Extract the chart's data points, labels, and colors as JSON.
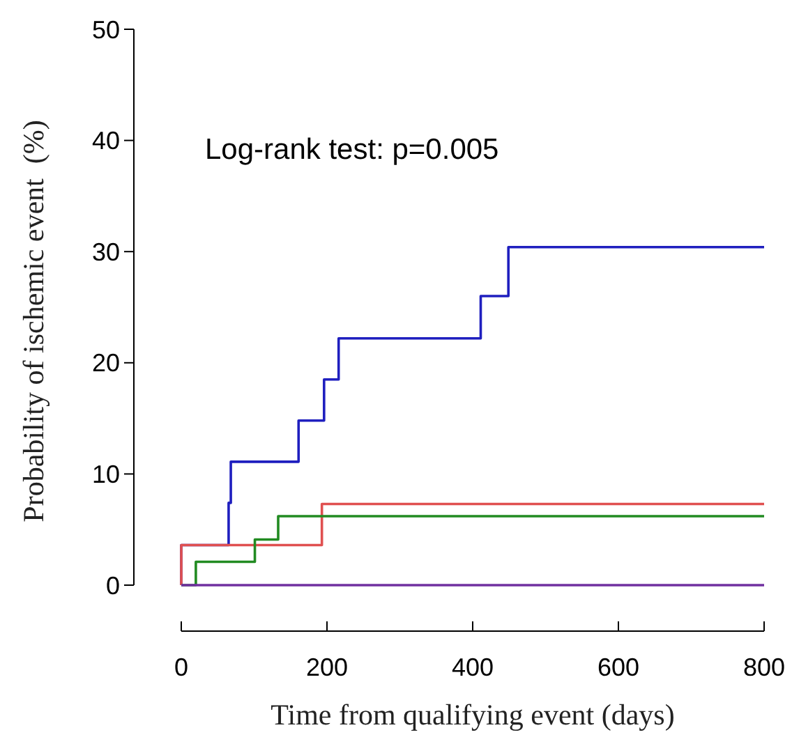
{
  "chart_data": {
    "type": "step",
    "xlabel": "Time from qualifying event (days)",
    "ylabel": "Probability of ischemic event  (%)",
    "annotations": [
      "Log-rank test: p=0.005"
    ],
    "xlim": [
      0,
      800
    ],
    "xticks": [
      0,
      200,
      400,
      600,
      800
    ],
    "ylim": [
      0,
      50
    ],
    "yticks": [
      0,
      10,
      20,
      30,
      40,
      50
    ],
    "grid": false,
    "marker": "none",
    "line_style": "solid",
    "series": [
      {
        "color": "#1f1fbf",
        "x": [
          0,
          0,
          65,
          68,
          161,
          196,
          216,
          411,
          449,
          800
        ],
        "values": [
          0,
          3.6,
          7.4,
          11.1,
          14.8,
          18.5,
          22.2,
          26.0,
          30.4,
          30.4
        ]
      },
      {
        "color": "#e05050",
        "x": [
          0,
          0,
          193,
          800
        ],
        "values": [
          0,
          3.6,
          7.3,
          7.3
        ]
      },
      {
        "color": "#228b22",
        "x": [
          0,
          20,
          101,
          133,
          800
        ],
        "values": [
          0,
          2.1,
          4.1,
          6.2,
          6.2
        ]
      },
      {
        "color": "#7030a0",
        "x": [
          0,
          800
        ],
        "values": [
          0,
          0
        ]
      }
    ]
  }
}
